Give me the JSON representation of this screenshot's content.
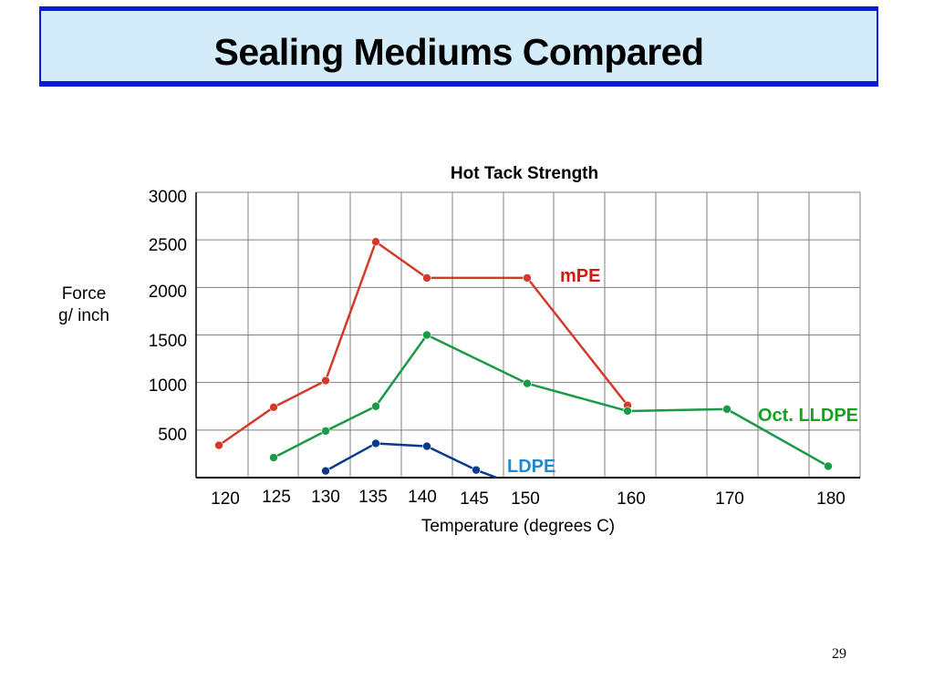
{
  "slide": {
    "title": "Sealing Mediums Compared",
    "page_number": "29",
    "colors": {
      "title_bar_fill": "#d2ecfa",
      "title_bar_border": "#0a1ad6"
    }
  },
  "chart_data": {
    "type": "line",
    "title": "Hot Tack Strength",
    "xlabel": "Temperature (degrees C)",
    "ylabel_lines": [
      "Force",
      "g/ inch"
    ],
    "x_tick_labels": [
      "120",
      "125",
      "130",
      "135",
      "140",
      "145",
      "150",
      "160",
      "170",
      "180"
    ],
    "y_tick_labels": [
      "3000",
      "2500",
      "2000",
      "1500",
      "1000",
      "500"
    ],
    "ylim": [
      0,
      3000
    ],
    "grid": true,
    "series": [
      {
        "name": "mPE",
        "color": "#d43a2a",
        "label_color": "#d41a10",
        "points": [
          {
            "x": 120,
            "y": 340
          },
          {
            "x": 125,
            "y": 740
          },
          {
            "x": 130,
            "y": 1020
          },
          {
            "x": 135,
            "y": 2480
          },
          {
            "x": 140,
            "y": 2100
          },
          {
            "x": 150,
            "y": 2100
          },
          {
            "x": 160,
            "y": 760
          }
        ]
      },
      {
        "name": "Oct. LLDPE",
        "color": "#1a9a48",
        "label_color": "#1aa020",
        "points": [
          {
            "x": 125,
            "y": 210
          },
          {
            "x": 130,
            "y": 490
          },
          {
            "x": 135,
            "y": 750
          },
          {
            "x": 140,
            "y": 1500
          },
          {
            "x": 150,
            "y": 990
          },
          {
            "x": 160,
            "y": 700
          },
          {
            "x": 170,
            "y": 720
          },
          {
            "x": 180,
            "y": 120
          }
        ]
      },
      {
        "name": "LDPE",
        "color": "#0a3a8a",
        "label_color": "#1e8ad0",
        "points": [
          {
            "x": 130,
            "y": 70
          },
          {
            "x": 135,
            "y": 360
          },
          {
            "x": 140,
            "y": 330
          },
          {
            "x": 145,
            "y": 80
          },
          {
            "x": 147,
            "y": -20
          }
        ]
      }
    ]
  }
}
